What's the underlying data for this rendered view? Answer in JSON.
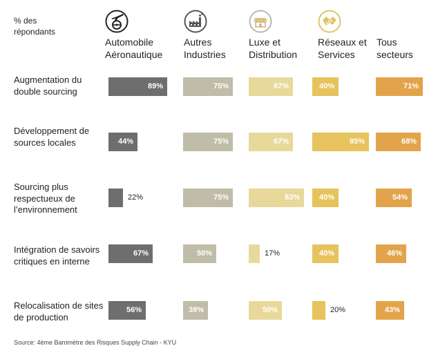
{
  "unit_label": [
    "% des",
    "répondants"
  ],
  "source": "Source: 4ème Baromètre des Risques Supply Chain - KYU",
  "chart_data": {
    "type": "bar",
    "title": "",
    "unit": "%",
    "categories": [
      "Augmentation du double sourcing",
      "Développement de sources locales",
      "Sourcing plus respectueux de l’environnement",
      "Intégration de savoirs critiques en interne",
      "Relocalisation de sites de production"
    ],
    "category_lines": [
      [
        "Augmentation du",
        "double sourcing"
      ],
      [
        "Développement de",
        "sources locales"
      ],
      [
        "Sourcing plus",
        "respectueux de",
        "l’environnement"
      ],
      [
        "Intégration de savoirs",
        "critiques en interne"
      ],
      [
        "Relocalisation de sites",
        "de production"
      ]
    ],
    "series": [
      {
        "name": "Automobile Aéronautique",
        "header_lines": [
          "Automobile",
          "Aéronautique"
        ],
        "icon": "car-plane-icon",
        "color": "#6e6e6e",
        "values": [
          89,
          44,
          22,
          67,
          56
        ],
        "labels": [
          "89%",
          "44%",
          "22%",
          "67%",
          "56%"
        ]
      },
      {
        "name": "Autres Industries",
        "header_lines": [
          "Autres",
          "Industries"
        ],
        "icon": "factory-icon",
        "color": "#bfbca8",
        "values": [
          75,
          75,
          75,
          50,
          38
        ],
        "labels": [
          "75%",
          "75%",
          "75%",
          "50%",
          "38%"
        ]
      },
      {
        "name": "Luxe et Distribution",
        "header_lines": [
          "Luxe et",
          "Distribution"
        ],
        "icon": "store-icon",
        "color": "#e8d99a",
        "values": [
          67,
          67,
          83,
          17,
          50
        ],
        "labels": [
          "67%",
          "67%",
          "83%",
          "17%",
          "50%"
        ]
      },
      {
        "name": "Réseaux et Services",
        "header_lines": [
          "Réseaux et",
          "Services"
        ],
        "icon": "handshake-icon",
        "color": "#e6c35c",
        "values": [
          40,
          85,
          40,
          40,
          20
        ],
        "labels": [
          "40%",
          "85%",
          "40%",
          "40%",
          "20%"
        ]
      },
      {
        "name": "Tous secteurs",
        "header_lines": [
          "Tous",
          "secteurs"
        ],
        "icon": "",
        "color": "#e2a44b",
        "values": [
          71,
          68,
          54,
          46,
          43
        ],
        "labels": [
          "71%",
          "68%",
          "54%",
          "46%",
          "43%"
        ]
      }
    ]
  }
}
